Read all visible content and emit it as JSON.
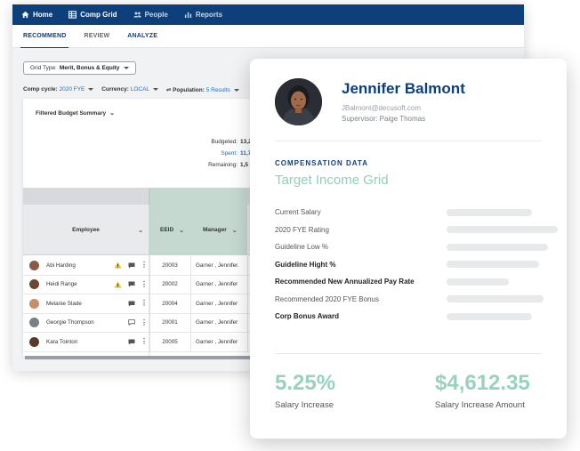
{
  "nav": {
    "home": "Home",
    "comp_grid": "Comp Grid",
    "people": "People",
    "reports": "Reports"
  },
  "subtabs": {
    "recommend": "RECOMMEND",
    "review": "REVIEW",
    "analyze": "ANALYZE"
  },
  "grid_type": {
    "label": "Grid Type:",
    "value": "Merit, Bonus & Equity"
  },
  "filters": {
    "comp_cycle_label": "Comp cycle:",
    "comp_cycle_value": "2020 FYE",
    "currency_label": "Currency:",
    "currency_value": "LOCAL",
    "population_label": "Population:",
    "population_value": "5 Results"
  },
  "budget": {
    "title": "Filtered Budget Summary",
    "budgeted_label": "Budgeted:",
    "budgeted_value": "13,2",
    "spent_label": "Spent:",
    "spent_value": "11,7",
    "remaining_label": "Remaining:",
    "remaining_value": "1,5"
  },
  "table": {
    "headers": {
      "employee": "Employee",
      "eeid": "EEID",
      "manager": "Manager"
    },
    "rows": [
      {
        "name": "Abi Harding",
        "eeid": "20003",
        "manager": "Garner , Jennifer.",
        "warning": true,
        "chat": "filled"
      },
      {
        "name": "Heidi Range",
        "eeid": "20002",
        "manager": "Garner , Jennifer",
        "warning": true,
        "chat": "filled"
      },
      {
        "name": "Melanie Slade",
        "eeid": "20004",
        "manager": "Garner , Jennifer",
        "warning": false,
        "chat": "filled"
      },
      {
        "name": "Georgie Thompson",
        "eeid": "20001",
        "manager": "Garner , Jennifer",
        "warning": false,
        "chat": "outline"
      },
      {
        "name": "Kara Tointon",
        "eeid": "20005",
        "manager": "Garner , Jennifer",
        "warning": false,
        "chat": "filled"
      }
    ]
  },
  "profile": {
    "name": "Jennifer Balmont",
    "email": "JBalmont@decusoft.com",
    "supervisor": "Supervisor: Paige Thomas",
    "section_label": "COMPENSATION DATA",
    "section_title": "Target Income Grid",
    "fields": [
      {
        "label": "Current Salary",
        "bold": false,
        "bar_fraction": 0.37
      },
      {
        "label": "2020 FYE Rating",
        "bold": false,
        "bar_fraction": 0.48
      },
      {
        "label": "Guideline Low %",
        "bold": false,
        "bar_fraction": 0.44
      },
      {
        "label": "Guideline Hight %",
        "bold": true,
        "bar_fraction": 0.4
      },
      {
        "label": "Recommended New Annualized Pay Rate",
        "bold": true,
        "bar_fraction": 0.27
      },
      {
        "label": "Recommended 2020 FYE Bonus",
        "bold": false,
        "bar_fraction": 0.42
      },
      {
        "label": "Corp Bonus Award",
        "bold": true,
        "bar_fraction": 0.37
      }
    ],
    "stats": {
      "increase_value": "5.25%",
      "increase_label": "Salary Increase",
      "amount_value": "$4,612.35",
      "amount_label": "Salary Increase Amount"
    }
  },
  "colors": {
    "primary": "#0d3f7a",
    "accent_green": "#98d1bd",
    "link_blue": "#1c6fbf",
    "warning": "#f2c21b"
  }
}
